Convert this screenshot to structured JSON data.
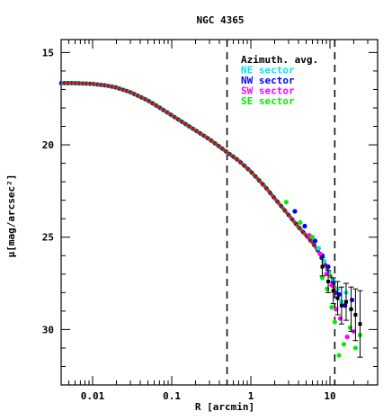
{
  "chart_data": {
    "type": "scatter",
    "title": "NGC 4365",
    "xlabel": "R [arcmin]",
    "ylabel": "μ[mag/arcsec²]",
    "x_scale": "log",
    "xlim": [
      0.004,
      40
    ],
    "ylim": [
      33,
      14.3
    ],
    "y_inverted": true,
    "x_ticks": [
      {
        "value": 0.01,
        "label": "0.01"
      },
      {
        "value": 0.1,
        "label": "0.1"
      },
      {
        "value": 1,
        "label": "1"
      },
      {
        "value": 10,
        "label": "10"
      }
    ],
    "y_ticks": [
      {
        "value": 15,
        "label": "15"
      },
      {
        "value": 20,
        "label": "20"
      },
      {
        "value": 25,
        "label": "25"
      },
      {
        "value": 30,
        "label": "30"
      }
    ],
    "vertical_lines": [
      0.5,
      11.5
    ],
    "legend": {
      "placement": "top-right",
      "entries": [
        {
          "label": "Azimuth. avg.",
          "color": "#000000"
        },
        {
          "label": "NE sector",
          "color": "#00e5ee"
        },
        {
          "label": "NW sector",
          "color": "#0000ff"
        },
        {
          "label": "SW sector",
          "color": "#ff00ff"
        },
        {
          "label": "SE sector",
          "color": "#00ee00"
        }
      ]
    },
    "profile_color": "#ff0000",
    "model_profile": [
      [
        0.004,
        16.66
      ],
      [
        0.006,
        16.66
      ],
      [
        0.01,
        16.7
      ],
      [
        0.015,
        16.79
      ],
      [
        0.02,
        16.9
      ],
      [
        0.03,
        17.15
      ],
      [
        0.05,
        17.6
      ],
      [
        0.07,
        17.98
      ],
      [
        0.1,
        18.4
      ],
      [
        0.15,
        18.88
      ],
      [
        0.2,
        19.22
      ],
      [
        0.3,
        19.7
      ],
      [
        0.5,
        20.4
      ],
      [
        0.7,
        20.85
      ],
      [
        1.0,
        21.45
      ],
      [
        1.5,
        22.25
      ],
      [
        2.0,
        22.9
      ],
      [
        3.0,
        23.8
      ],
      [
        4.0,
        24.45
      ],
      [
        5.0,
        24.9
      ],
      [
        6.0,
        25.3
      ],
      [
        7.0,
        25.7
      ],
      [
        8.0,
        26.2
      ],
      [
        10.0,
        27.0
      ],
      [
        12.0,
        28.0
      ]
    ],
    "series": [
      {
        "name": "NE sector",
        "color": "#00e5ee",
        "points": [
          [
            7.2,
            25.6
          ],
          [
            8.5,
            26.3
          ],
          [
            9.8,
            26.9
          ],
          [
            11.0,
            27.3
          ],
          [
            12.5,
            27.8
          ],
          [
            14.0,
            28.5
          ],
          [
            16.0,
            28.0
          ],
          [
            18.5,
            28.9
          ]
        ]
      },
      {
        "name": "NW sector",
        "color": "#0000ff",
        "points": [
          [
            3.6,
            23.6
          ],
          [
            4.8,
            24.4
          ],
          [
            6.5,
            25.2
          ],
          [
            8.0,
            26.0
          ],
          [
            9.5,
            26.6
          ],
          [
            11.0,
            27.5
          ],
          [
            13.0,
            28.1
          ],
          [
            15.5,
            28.7
          ],
          [
            19.0,
            28.4
          ]
        ]
      },
      {
        "name": "SW sector",
        "color": "#ff00ff",
        "points": [
          [
            5.5,
            24.9
          ],
          [
            7.5,
            25.9
          ],
          [
            9.0,
            27.0
          ],
          [
            10.5,
            27.6
          ],
          [
            12.0,
            28.9
          ],
          [
            13.5,
            29.4
          ],
          [
            16.5,
            30.4
          ],
          [
            20.0,
            30.1
          ]
        ]
      },
      {
        "name": "SE sector",
        "color": "#00ee00",
        "points": [
          [
            2.8,
            23.1
          ],
          [
            4.2,
            24.2
          ],
          [
            6.0,
            25.0
          ],
          [
            8.0,
            27.2
          ],
          [
            9.2,
            27.8
          ],
          [
            10.5,
            28.8
          ],
          [
            11.5,
            29.6
          ],
          [
            13.0,
            31.4
          ],
          [
            15.0,
            30.8
          ],
          [
            18.0,
            29.9
          ],
          [
            21.0,
            31.0
          ],
          [
            24.0,
            30.3
          ]
        ]
      },
      {
        "name": "Azimuth. avg.",
        "color": "#000000",
        "points": [
          [
            8.0,
            26.6
          ],
          [
            9.5,
            27.4
          ],
          [
            11.0,
            27.9
          ],
          [
            12.5,
            28.3
          ],
          [
            14.0,
            28.7
          ],
          [
            16.0,
            28.5
          ],
          [
            18.5,
            28.9
          ],
          [
            21.0,
            29.2
          ],
          [
            24.0,
            29.7
          ]
        ],
        "errors": [
          [
            0.5,
            0.5
          ],
          [
            0.6,
            0.6
          ],
          [
            0.7,
            0.7
          ],
          [
            0.9,
            0.9
          ],
          [
            1.0,
            1.0
          ],
          [
            1.0,
            1.0
          ],
          [
            1.2,
            1.2
          ],
          [
            1.4,
            1.4
          ],
          [
            1.8,
            1.8
          ]
        ]
      }
    ]
  }
}
